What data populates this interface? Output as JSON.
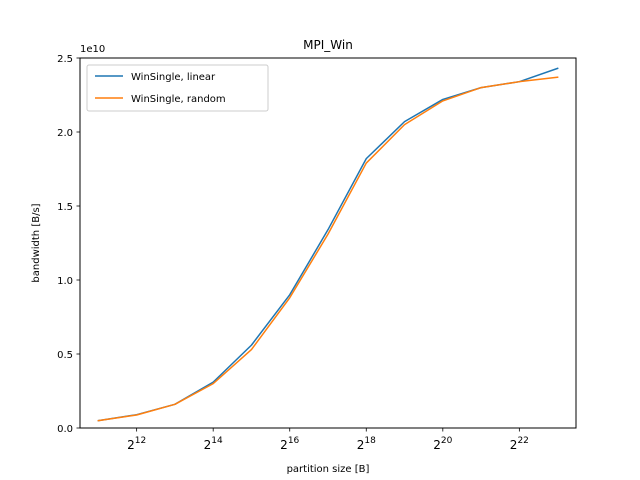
{
  "chart_data": {
    "type": "line",
    "title": "MPI_Win",
    "xlabel": "partition size [B]",
    "ylabel": "bandwidth [B/s]",
    "x_scale": "log2",
    "x_log2": [
      11,
      12,
      13,
      14,
      15,
      16,
      17,
      18,
      19,
      20,
      21,
      22,
      23
    ],
    "xlim_log2": [
      10.52,
      23.48
    ],
    "x_tick_labels": [
      {
        "base": "2",
        "exp": "12"
      },
      {
        "base": "2",
        "exp": "14"
      },
      {
        "base": "2",
        "exp": "16"
      },
      {
        "base": "2",
        "exp": "18"
      },
      {
        "base": "2",
        "exp": "20"
      },
      {
        "base": "2",
        "exp": "22"
      }
    ],
    "x_ticks_log2": [
      12,
      14,
      16,
      18,
      20,
      22
    ],
    "y_scale_label": "1e10",
    "ylim": [
      0,
      2.5
    ],
    "y_ticks": [
      0.0,
      0.5,
      1.0,
      1.5,
      2.0,
      2.5
    ],
    "y_tick_labels": [
      "0.0",
      "0.5",
      "1.0",
      "1.5",
      "2.0",
      "2.5"
    ],
    "grid": false,
    "legend_position": "top-left",
    "series": [
      {
        "name": "WinSingle, linear",
        "color": "#1f77b4",
        "values": [
          0.05,
          0.09,
          0.16,
          0.31,
          0.56,
          0.9,
          1.34,
          1.82,
          2.07,
          2.22,
          2.3,
          2.34,
          2.43
        ]
      },
      {
        "name": "WinSingle, random",
        "color": "#ff7f0e",
        "values": [
          0.05,
          0.088,
          0.16,
          0.3,
          0.53,
          0.88,
          1.31,
          1.79,
          2.05,
          2.21,
          2.3,
          2.34,
          2.37
        ]
      }
    ]
  }
}
